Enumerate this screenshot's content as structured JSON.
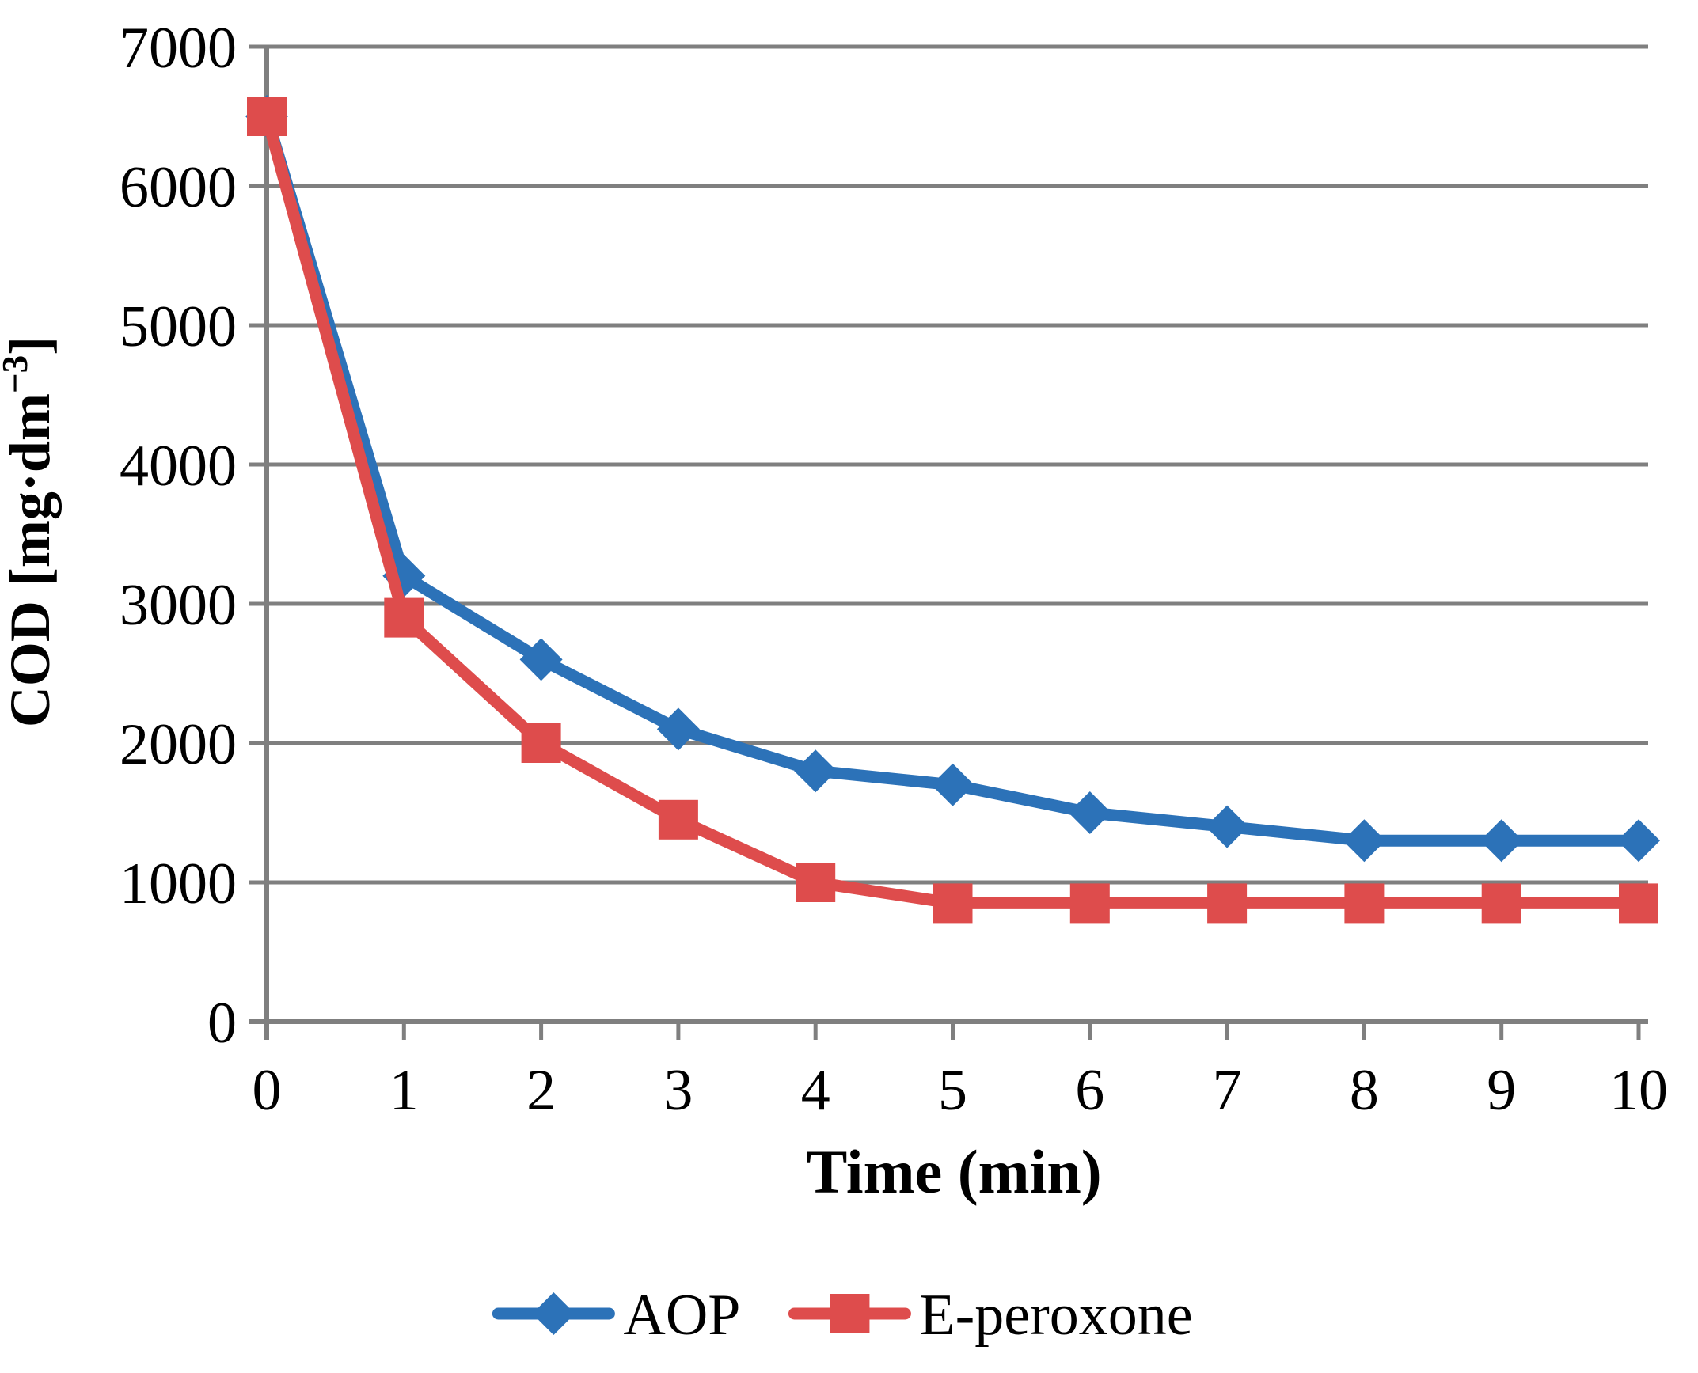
{
  "chart_data": {
    "type": "line",
    "title": "",
    "xlabel": "Time (min)",
    "ylabel": "COD [mg·dm⁻³]",
    "ylabel_parts": {
      "prefix": "COD [mg·dm",
      "superscript": "−3",
      "suffix": "]"
    },
    "x": [
      0,
      1,
      2,
      3,
      4,
      5,
      6,
      7,
      8,
      9,
      10
    ],
    "xlim": [
      0,
      10
    ],
    "ylim": [
      0,
      7000
    ],
    "xtick_labels": [
      "0",
      "1",
      "2",
      "3",
      "4",
      "5",
      "6",
      "7",
      "8",
      "9",
      "10"
    ],
    "yticks": [
      0,
      1000,
      2000,
      3000,
      4000,
      5000,
      6000,
      7000
    ],
    "ytick_labels": [
      "0",
      "1000",
      "2000",
      "3000",
      "4000",
      "5000",
      "6000",
      "7000"
    ],
    "grid": true,
    "legend_position": "bottom-center",
    "series": [
      {
        "name": "AOP",
        "marker": "diamond",
        "color": "#2C72B8",
        "values": [
          6500,
          3200,
          2600,
          2100,
          1800,
          1700,
          1500,
          1400,
          1300,
          1300,
          1300
        ]
      },
      {
        "name": "E-peroxone",
        "marker": "square",
        "color": "#DE4C4C",
        "values": [
          6500,
          2900,
          2000,
          1450,
          1000,
          850,
          850,
          850,
          850,
          850,
          850
        ]
      }
    ],
    "colors": {
      "grid": "#7F7F7F",
      "axis": "#7F7F7F",
      "text": "#000000",
      "background": "#FFFFFF"
    }
  }
}
